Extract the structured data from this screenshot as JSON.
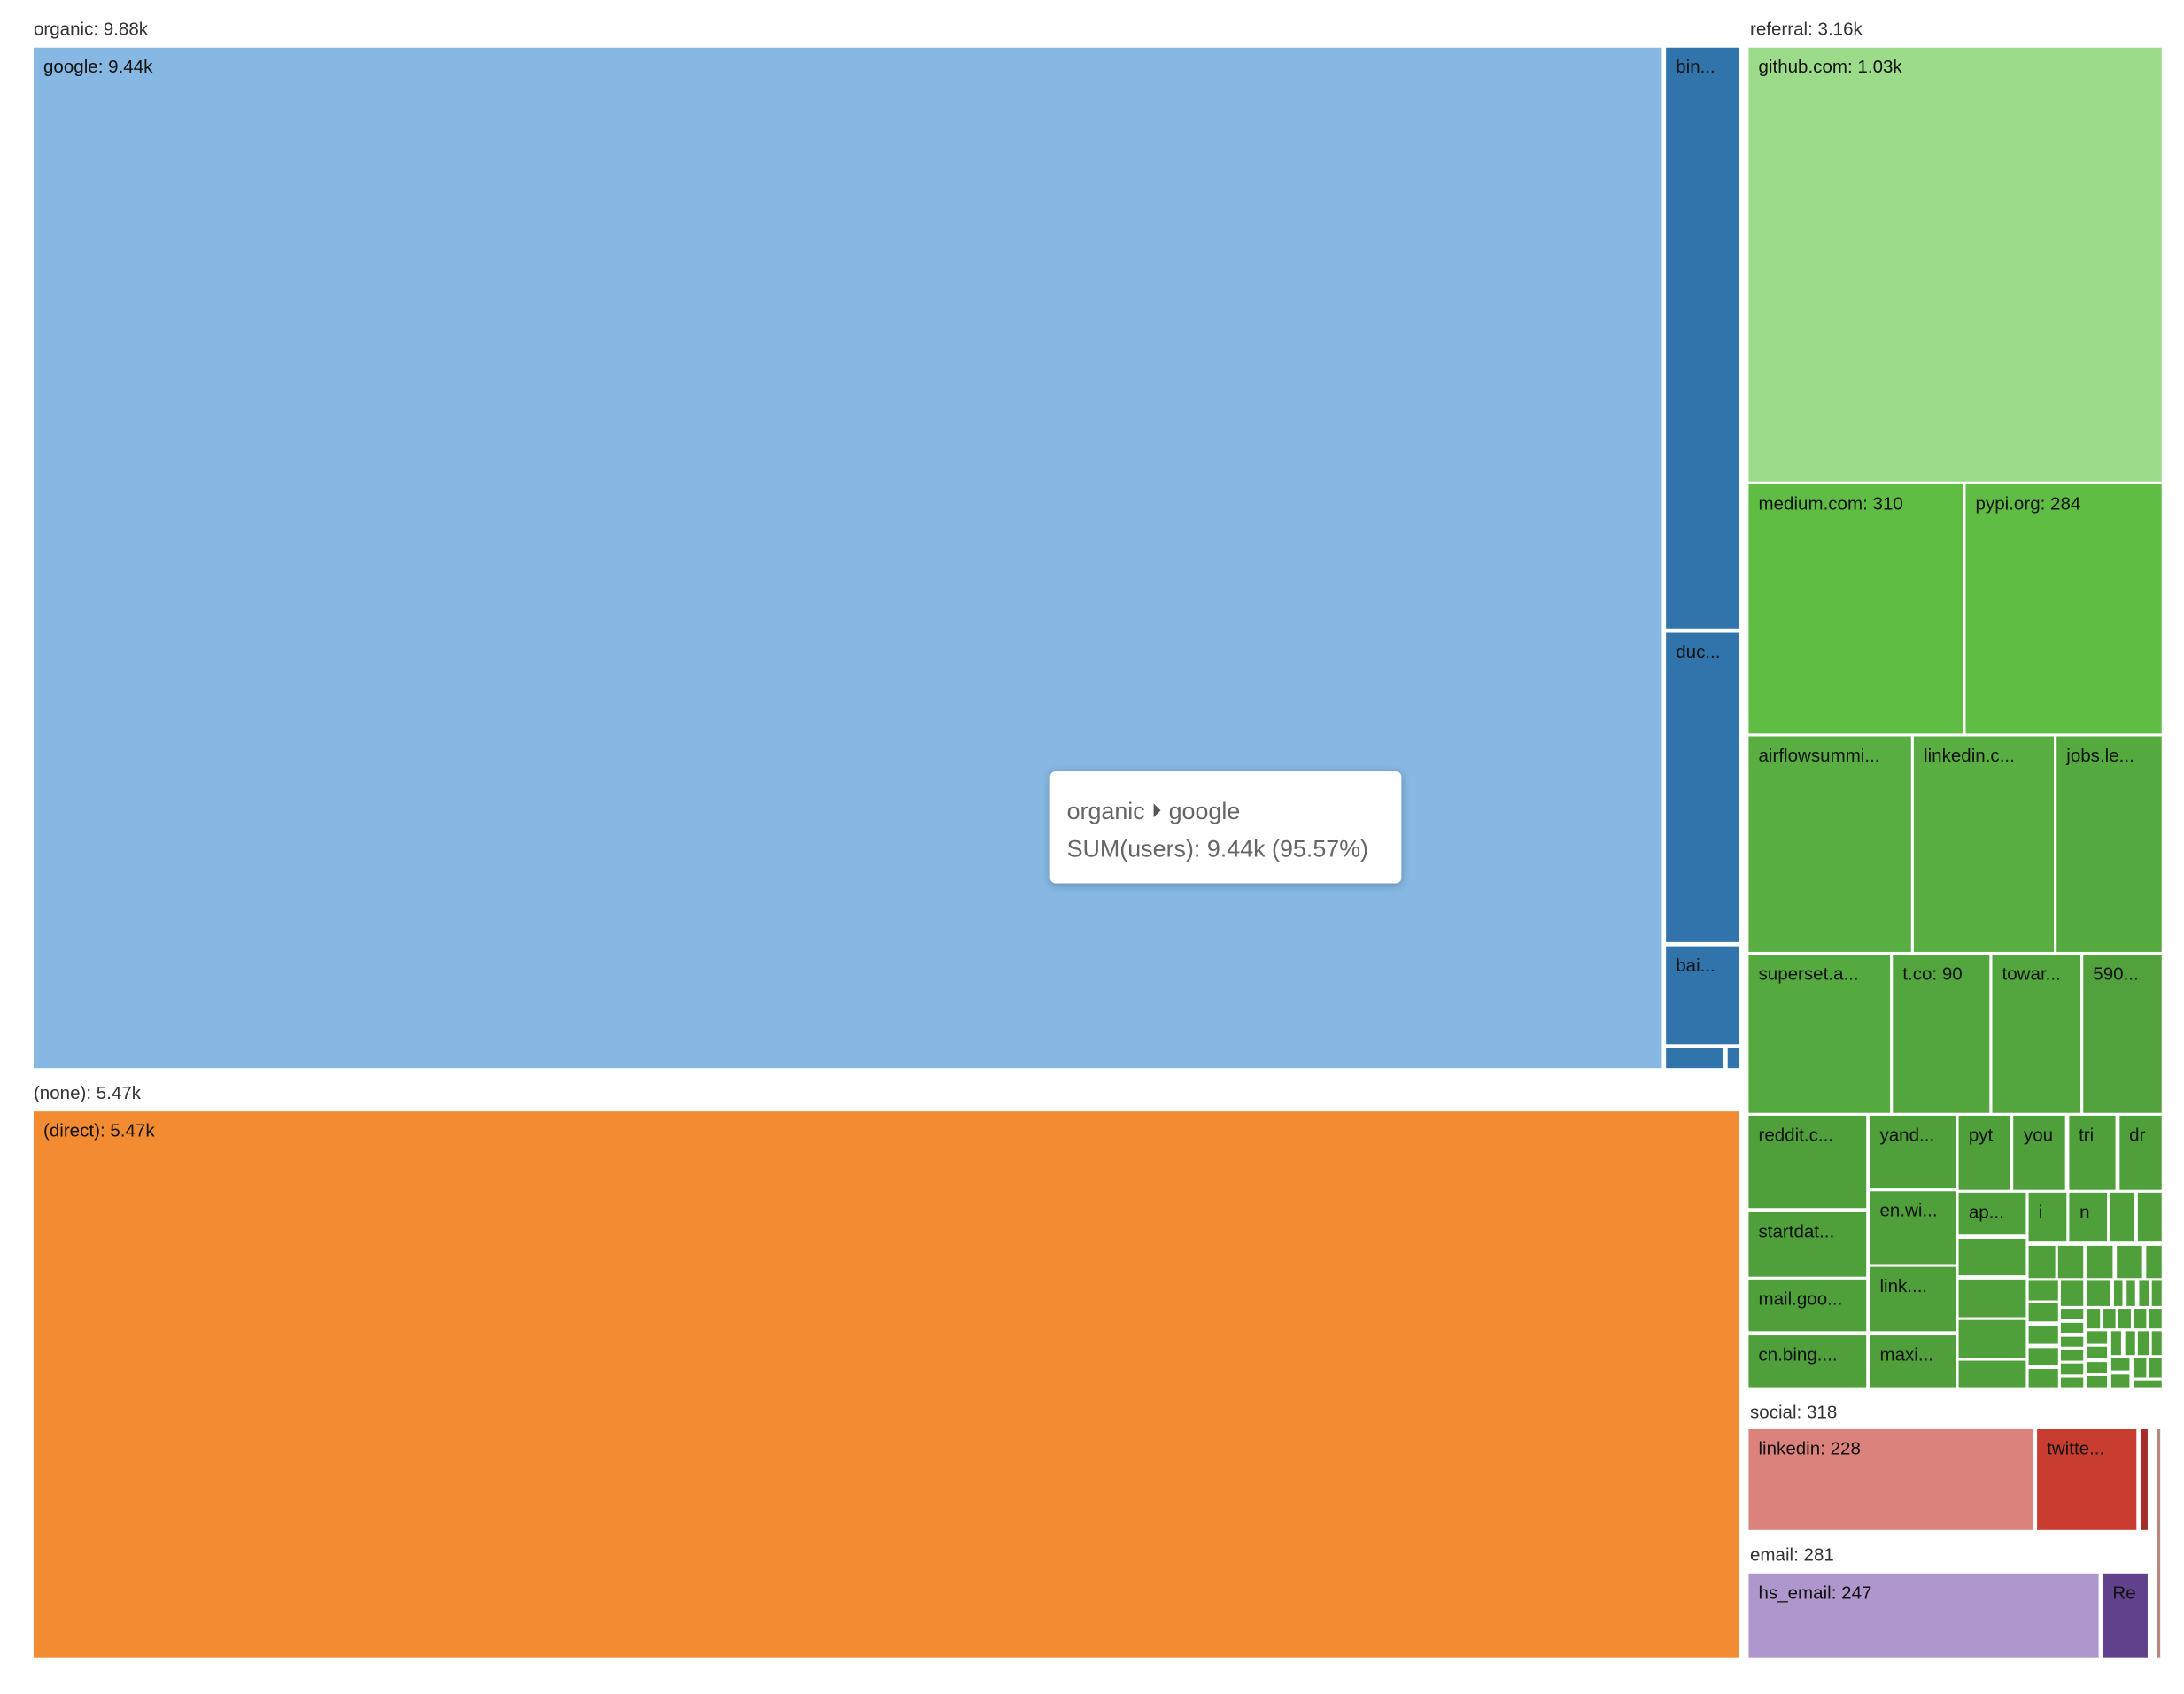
{
  "chart_data": {
    "type": "treemap",
    "metric": "SUM(users)",
    "groups": [
      {
        "name": "organic",
        "label": "organic: 9.88k",
        "value": 9880,
        "small_color": "#3173ab",
        "children": [
          {
            "label": "google: 9.44k",
            "value": 9440,
            "color": "#86b8e3"
          },
          {
            "label": "bin...",
            "color": "#3173ab"
          },
          {
            "label": "duc...",
            "color": "#3173ab"
          },
          {
            "label": "bai...",
            "color": "#3173ab"
          },
          {
            "label": "",
            "color": "#3173ab"
          },
          {
            "label": "",
            "color": "#3173ab"
          }
        ]
      },
      {
        "name": "(none)",
        "label": "(none): 5.47k",
        "value": 5470,
        "small_color": "#f28b32",
        "children": [
          {
            "label": "(direct): 5.47k",
            "value": 5470,
            "color": "#f28b32"
          }
        ]
      },
      {
        "name": "referral",
        "label": "referral: 3.16k",
        "value": 3160,
        "small_color": "#4f9f3b",
        "children": [
          {
            "label": "github.com: 1.03k",
            "value": 1030,
            "color": "#9bdb8a"
          },
          {
            "label": "medium.com: 310",
            "value": 310,
            "color": "#60bd44"
          },
          {
            "label": "pypi.org: 284",
            "value": 284,
            "color": "#60bd44"
          },
          {
            "label": "airflowsummi...",
            "color": "#58ae41"
          },
          {
            "label": "linkedin.c...",
            "color": "#58ae41"
          },
          {
            "label": "jobs.le...",
            "color": "#55aa3f"
          },
          {
            "label": "superset.a...",
            "color": "#55aa3f"
          },
          {
            "label": "t.co: 90",
            "value": 90,
            "color": "#53a63e"
          },
          {
            "label": "towar...",
            "color": "#53a63e"
          },
          {
            "label": "590...",
            "color": "#51a23d"
          },
          {
            "label": "reddit.c...",
            "color": "#4f9f3b"
          },
          {
            "label": "startdat...",
            "color": "#4f9f3b"
          },
          {
            "label": "mail.goo...",
            "color": "#4f9f3b"
          },
          {
            "label": "cn.bing....",
            "color": "#4f9f3b"
          },
          {
            "label": "yand...",
            "color": "#4f9f3b"
          },
          {
            "label": "en.wi...",
            "color": "#4f9f3b"
          },
          {
            "label": "link....",
            "color": "#4f9f3b"
          },
          {
            "label": "maxi...",
            "color": "#4f9f3b"
          },
          {
            "label": "pyt",
            "color": "#4f9f3b"
          },
          {
            "label": "you",
            "color": "#4f9f3b"
          },
          {
            "label": "tri",
            "color": "#4f9f3b"
          },
          {
            "label": "dr",
            "color": "#4f9f3b"
          },
          {
            "label": "ap...",
            "color": "#4f9f3b"
          },
          {
            "label": "i",
            "color": "#4f9f3b"
          },
          {
            "label": "n",
            "color": "#4f9f3b"
          }
        ]
      },
      {
        "name": "social",
        "label": "social: 318",
        "value": 318,
        "small_color": "#a32e28",
        "children": [
          {
            "label": "linkedin: 228",
            "value": 228,
            "color": "#dc827d"
          },
          {
            "label": "twitte...",
            "color": "#c93d31"
          },
          {
            "label": "",
            "color": "#a32e28"
          }
        ]
      },
      {
        "name": "email",
        "label": "email: 281",
        "value": 281,
        "small_color": "#61418b",
        "children": [
          {
            "label": "hs_email: 247",
            "value": 247,
            "color": "#af96cc"
          },
          {
            "label": "Re",
            "color": "#61418b"
          }
        ]
      },
      {
        "name": "",
        "label": "",
        "small_color": "#b98880",
        "children": [
          {
            "label": "",
            "color": "#b98880"
          }
        ]
      }
    ],
    "tooltip": {
      "path_parent": "organic",
      "path_child": "google",
      "text": "SUM(users): 9.44k (95.57%)"
    }
  }
}
